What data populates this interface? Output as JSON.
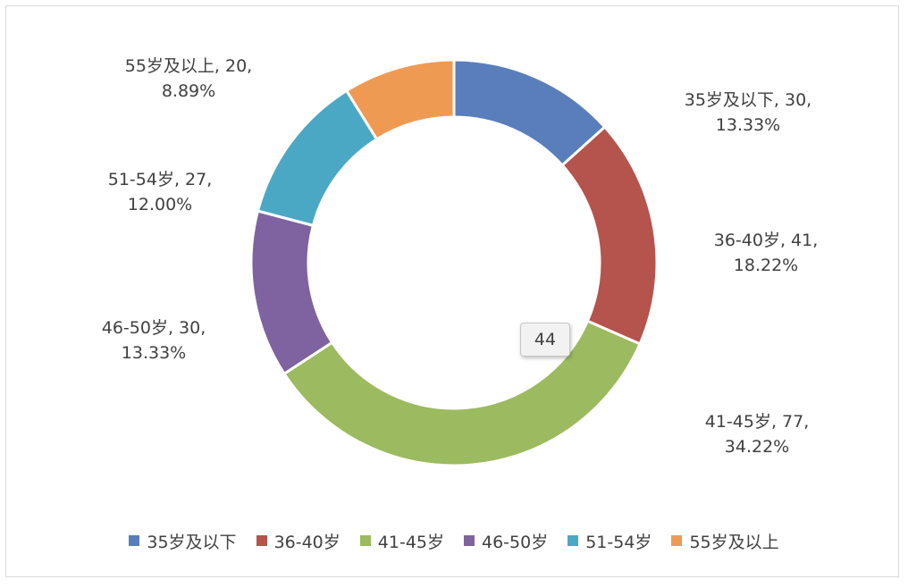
{
  "chart_data": {
    "type": "pie",
    "style": "donut",
    "categories": [
      "35岁及以下",
      "36-40岁",
      "41-45岁",
      "46-50岁",
      "51-54岁",
      "55岁及以上"
    ],
    "values": [
      30,
      41,
      77,
      30,
      27,
      20
    ],
    "percents": [
      "13.33%",
      "18.22%",
      "34.22%",
      "13.33%",
      "12.00%",
      "8.89%"
    ],
    "colors": [
      "#5a7ebc",
      "#b5534d",
      "#9cba5f",
      "#7e63a0",
      "#4ba8c5",
      "#ef9a52"
    ],
    "data_labels": [
      {
        "line1": "35岁及以下, 30,",
        "line2": "13.33%"
      },
      {
        "line1": "36-40岁, 41,",
        "line2": "18.22%"
      },
      {
        "line1": "41-45岁, 77,",
        "line2": "34.22%"
      },
      {
        "line1": "46-50岁, 30,",
        "line2": "13.33%"
      },
      {
        "line1": "51-54岁, 27,",
        "line2": "12.00%"
      },
      {
        "line1": "55岁及以上, 20,",
        "line2": "8.89%"
      }
    ],
    "legend": {
      "position": "bottom",
      "items": [
        "35岁及以下",
        "36-40岁",
        "41-45岁",
        "46-50岁",
        "51-54岁",
        "55岁及以上"
      ]
    },
    "tooltip": "44"
  }
}
